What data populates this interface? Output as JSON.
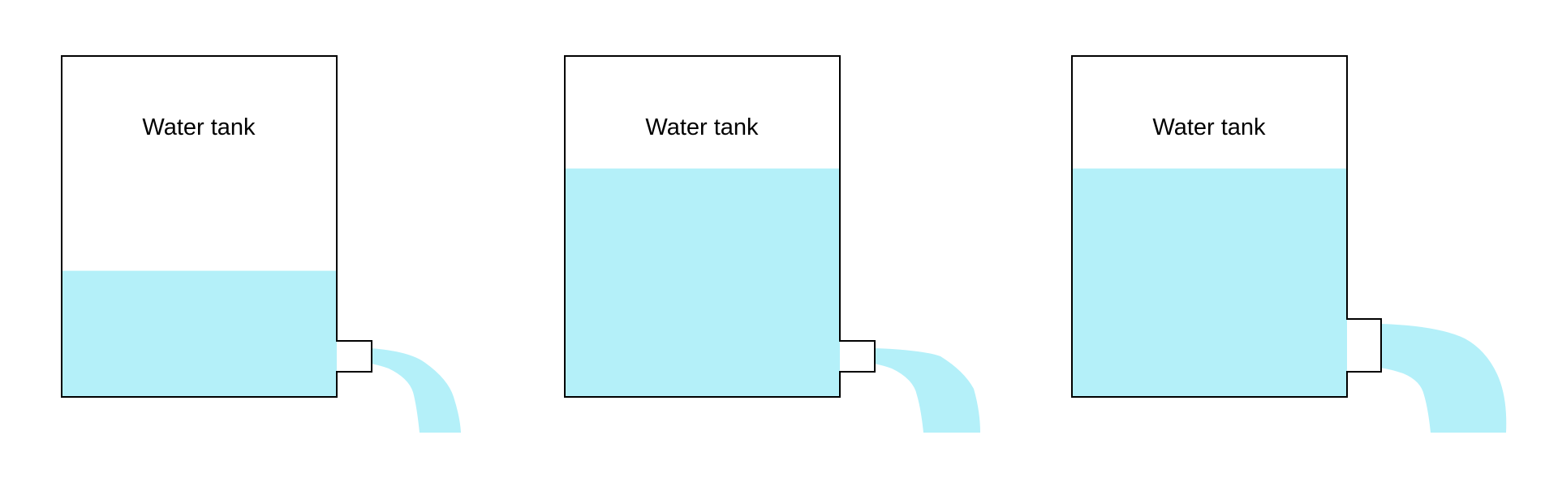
{
  "colors": {
    "water": "#b4f0f9",
    "outline": "#000000",
    "background": "#ffffff"
  },
  "tanks": [
    {
      "label": "Water tank",
      "water_level_fraction": 0.37,
      "outlet": "small"
    },
    {
      "label": "Water tank",
      "water_level_fraction": 0.67,
      "outlet": "small"
    },
    {
      "label": "Water tank",
      "water_level_fraction": 0.67,
      "outlet": "large"
    }
  ]
}
